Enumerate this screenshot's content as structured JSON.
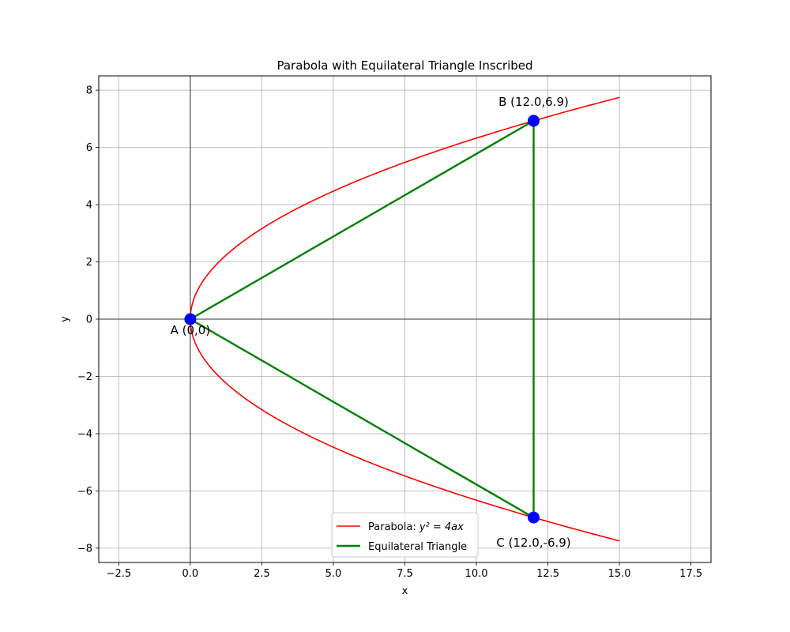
{
  "chart_data": {
    "type": "line",
    "title": "Parabola with Equilateral Triangle Inscribed",
    "xlabel": "x",
    "ylabel": "y",
    "xlim": [
      -3.2,
      18.2
    ],
    "ylim": [
      -8.5,
      8.5
    ],
    "xticks": [
      -2.5,
      0.0,
      2.5,
      5.0,
      7.5,
      10.0,
      12.5,
      15.0,
      17.5
    ],
    "xtick_labels": [
      "−2.5",
      "0.0",
      "2.5",
      "5.0",
      "7.5",
      "10.0",
      "12.5",
      "15.0",
      "17.5"
    ],
    "yticks": [
      -8,
      -6,
      -4,
      -2,
      0,
      2,
      4,
      6,
      8
    ],
    "ytick_labels": [
      "−8",
      "−6",
      "−4",
      "−2",
      "0",
      "2",
      "4",
      "6",
      "8"
    ],
    "grid": true,
    "legend_position": "bottom-center",
    "parabola": {
      "name": "Parabola: y² = 4ax",
      "name_prefix": "Parabola: ",
      "name_math": "y² = 4ax",
      "a": 1.0,
      "x_range": [
        0,
        15
      ],
      "color": "#ff0000"
    },
    "triangle": {
      "name": "Equilateral Triangle",
      "color": "#008000",
      "vertices": [
        [
          0,
          0
        ],
        [
          12.0,
          6.93
        ],
        [
          12.0,
          -6.93
        ]
      ]
    },
    "points": [
      {
        "label": "A (0,0)",
        "x": 0,
        "y": 0
      },
      {
        "label": "B (12.0,6.9)",
        "x": 12.0,
        "y": 6.93
      },
      {
        "label": "C (12.0,-6.9)",
        "x": 12.0,
        "y": -6.93
      }
    ],
    "point_color": "#0000ff"
  }
}
